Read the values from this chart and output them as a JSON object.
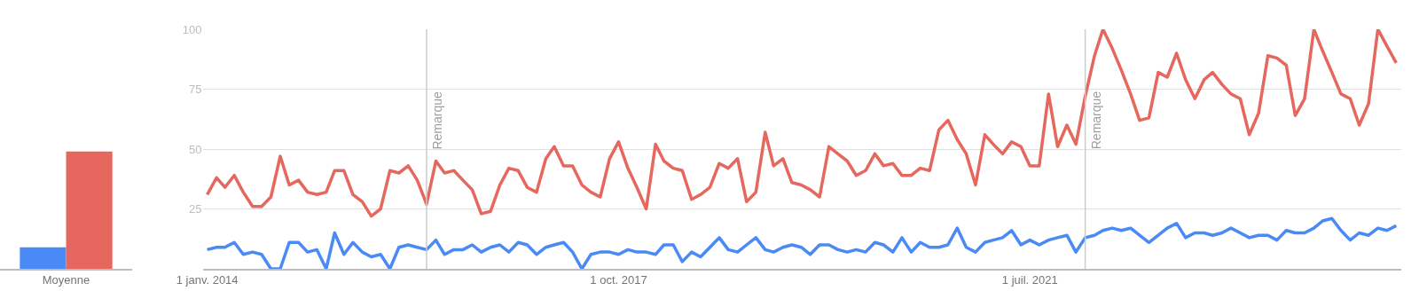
{
  "chart_data": [
    {
      "type": "bar",
      "categories": [
        "Moyenne"
      ],
      "ylim": [
        0,
        100
      ],
      "tick_labels": "x",
      "grid": false,
      "series": [
        {
          "color": "#4a8af4",
          "values": [
            9
          ]
        },
        {
          "color": "#e5675d",
          "values": [
            49
          ]
        }
      ]
    },
    {
      "type": "line",
      "grid": "y",
      "xlim": [
        "2013-12-17",
        "2024-11-18"
      ],
      "ylim": [
        0,
        100
      ],
      "xticks": [
        {
          "value": "2014-01-01",
          "label": "1 janv. 2014"
        },
        {
          "value": "2017-10-01",
          "label": "1 oct. 2017"
        },
        {
          "value": "2021-07-01",
          "label": "1 juil. 2021"
        }
      ],
      "yticks": [
        25,
        50,
        75,
        100
      ],
      "ref_lines": [
        {
          "axis": "x",
          "value": "2016-01",
          "label": "Remarque",
          "color": "#cccccc"
        },
        {
          "axis": "x",
          "value": "2022-01",
          "label": "Remarque",
          "color": "#cccccc"
        }
      ],
      "x": [
        "2014-01",
        "2014-02",
        "2014-03",
        "2014-04",
        "2014-05",
        "2014-06",
        "2014-07",
        "2014-08",
        "2014-09",
        "2014-10",
        "2014-11",
        "2014-12",
        "2015-01",
        "2015-02",
        "2015-03",
        "2015-04",
        "2015-05",
        "2015-06",
        "2015-07",
        "2015-08",
        "2015-09",
        "2015-10",
        "2015-11",
        "2015-12",
        "2016-01",
        "2016-02",
        "2016-03",
        "2016-04",
        "2016-05",
        "2016-06",
        "2016-07",
        "2016-08",
        "2016-09",
        "2016-10",
        "2016-11",
        "2016-12",
        "2017-01",
        "2017-02",
        "2017-03",
        "2017-04",
        "2017-05",
        "2017-06",
        "2017-07",
        "2017-08",
        "2017-09",
        "2017-10",
        "2017-11",
        "2017-12",
        "2018-01",
        "2018-02",
        "2018-03",
        "2018-04",
        "2018-05",
        "2018-06",
        "2018-07",
        "2018-08",
        "2018-09",
        "2018-10",
        "2018-11",
        "2018-12",
        "2019-01",
        "2019-02",
        "2019-03",
        "2019-04",
        "2019-05",
        "2019-06",
        "2019-07",
        "2019-08",
        "2019-09",
        "2019-10",
        "2019-11",
        "2019-12",
        "2020-01",
        "2020-02",
        "2020-03",
        "2020-04",
        "2020-05",
        "2020-06",
        "2020-07",
        "2020-08",
        "2020-09",
        "2020-10",
        "2020-11",
        "2020-12",
        "2021-01",
        "2021-02",
        "2021-03",
        "2021-04",
        "2021-05",
        "2021-06",
        "2021-07",
        "2021-08",
        "2021-09",
        "2021-10",
        "2021-11",
        "2021-12",
        "2022-01",
        "2022-02",
        "2022-03",
        "2022-04",
        "2022-05",
        "2022-06",
        "2022-07",
        "2022-08",
        "2022-09",
        "2022-10",
        "2022-11",
        "2022-12",
        "2023-01",
        "2023-02",
        "2023-03",
        "2023-04",
        "2023-05",
        "2023-06",
        "2023-07",
        "2023-08",
        "2023-09",
        "2023-10",
        "2023-11",
        "2023-12",
        "2024-01",
        "2024-02",
        "2024-03",
        "2024-04",
        "2024-05",
        "2024-06",
        "2024-07",
        "2024-08",
        "2024-09",
        "2024-10",
        "2024-11"
      ],
      "series": [
        {
          "color": "#4a8af4",
          "values": [
            8,
            9,
            9,
            11,
            6,
            7,
            6,
            0,
            0,
            11,
            11,
            7,
            8,
            0,
            15,
            6,
            11,
            7,
            5,
            6,
            0,
            9,
            10,
            9,
            8,
            12,
            6,
            8,
            8,
            10,
            7,
            9,
            10,
            7,
            11,
            10,
            6,
            9,
            10,
            11,
            7,
            0,
            6,
            7,
            7,
            6,
            8,
            7,
            7,
            6,
            10,
            10,
            3,
            7,
            5,
            9,
            13,
            8,
            7,
            10,
            13,
            8,
            7,
            9,
            10,
            9,
            6,
            10,
            10,
            8,
            7,
            8,
            7,
            11,
            10,
            7,
            13,
            7,
            11,
            9,
            9,
            10,
            17,
            9,
            7,
            11,
            12,
            13,
            16,
            10,
            12,
            10,
            12,
            13,
            14,
            7,
            13,
            14,
            16,
            17,
            16,
            17,
            14,
            11,
            14,
            17,
            19,
            13,
            15,
            15,
            14,
            15,
            17,
            15,
            13,
            14,
            14,
            12,
            16,
            15,
            15,
            17,
            20,
            21,
            16,
            12,
            15,
            14,
            17,
            16,
            18
          ]
        },
        {
          "color": "#e5675d",
          "values": [
            31,
            38,
            34,
            39,
            32,
            26,
            26,
            30,
            47,
            35,
            37,
            32,
            31,
            32,
            41,
            41,
            31,
            28,
            22,
            25,
            41,
            40,
            43,
            37,
            27,
            45,
            40,
            41,
            37,
            33,
            23,
            24,
            35,
            42,
            41,
            34,
            32,
            46,
            51,
            43,
            43,
            35,
            32,
            30,
            46,
            53,
            42,
            34,
            25,
            52,
            45,
            42,
            41,
            29,
            31,
            34,
            44,
            42,
            46,
            28,
            32,
            57,
            43,
            46,
            36,
            35,
            33,
            30,
            51,
            48,
            45,
            39,
            41,
            48,
            43,
            44,
            39,
            39,
            42,
            41,
            58,
            62,
            54,
            48,
            35,
            56,
            52,
            48,
            53,
            51,
            43,
            43,
            73,
            51,
            60,
            52,
            72,
            89,
            100,
            92,
            83,
            73,
            62,
            63,
            82,
            80,
            90,
            79,
            71,
            79,
            82,
            77,
            73,
            71,
            56,
            65,
            89,
            88,
            85,
            64,
            71,
            100,
            91,
            82,
            73,
            71,
            60,
            69,
            100,
            93,
            86
          ]
        }
      ]
    }
  ]
}
